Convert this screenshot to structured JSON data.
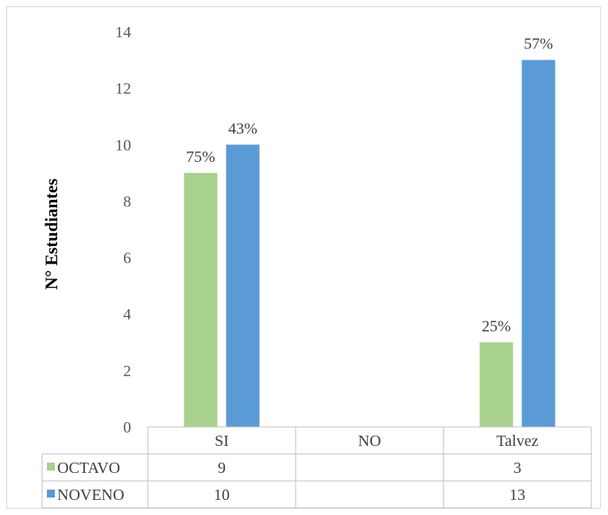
{
  "chart_data": {
    "type": "bar",
    "title": "",
    "xlabel": "",
    "ylabel": "N° Estudiantes",
    "ylim": [
      0,
      14
    ],
    "yticks": [
      0,
      2,
      4,
      6,
      8,
      10,
      12,
      14
    ],
    "categories": [
      "SI",
      "NO",
      "Talvez"
    ],
    "series": [
      {
        "name": "OCTAVO",
        "color": "#a9d18e",
        "values": [
          9,
          null,
          3
        ],
        "table_values": [
          "9",
          "",
          "3"
        ],
        "labels": [
          "75%",
          "",
          "25%"
        ]
      },
      {
        "name": "NOVENO",
        "color": "#5b9bd5",
        "values": [
          10,
          null,
          13
        ],
        "table_values": [
          "10",
          "",
          "13"
        ],
        "labels": [
          "43%",
          "",
          "57%"
        ]
      }
    ],
    "grid": false,
    "legend": "data-table"
  }
}
